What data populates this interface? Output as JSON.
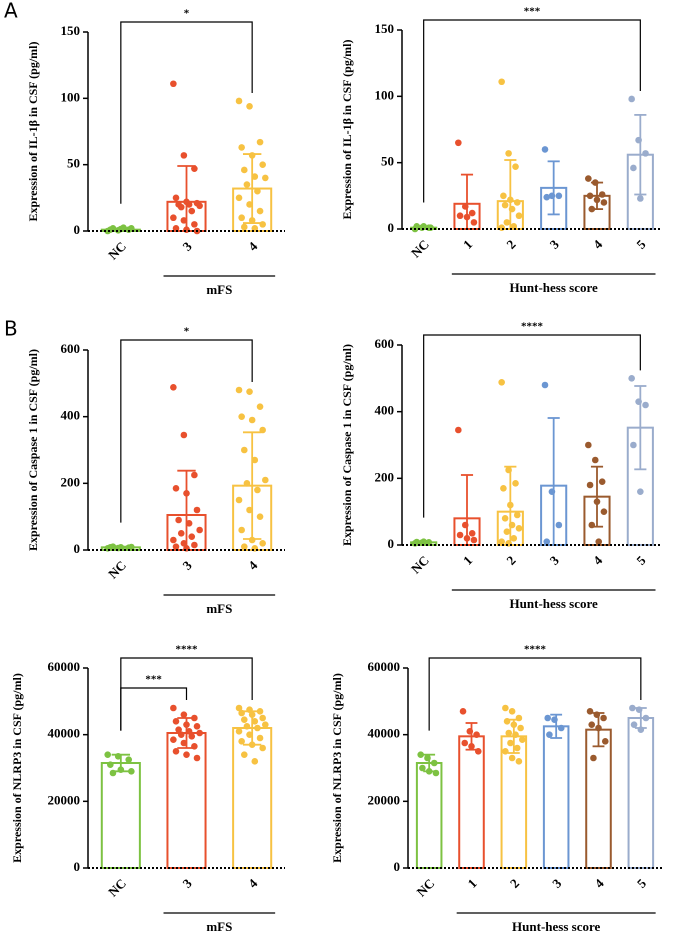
{
  "chart_data": [
    {
      "type": "bar",
      "panel_label": "A",
      "ylabel": "Expression of IL-1β in CSF (pg/ml)",
      "categories": [
        "NC",
        "3",
        "4"
      ],
      "colors": [
        "#7dc242",
        "#e8502d",
        "#f7c242"
      ],
      "values": [
        1,
        22,
        32
      ],
      "errors": [
        0.8,
        27,
        26
      ],
      "points": [
        [
          0,
          0.5,
          1,
          1,
          1.5,
          2,
          2,
          2.5
        ],
        [
          111,
          57,
          47,
          25,
          22,
          21,
          20,
          20,
          19,
          18,
          15,
          10,
          8,
          5,
          2,
          1,
          0
        ],
        [
          98,
          94,
          67,
          63,
          57,
          50,
          46,
          41,
          40,
          35,
          30,
          25,
          20,
          15,
          10,
          8,
          5,
          3,
          2
        ]
      ],
      "ylim": [
        0,
        150
      ],
      "yticks": [
        0,
        50,
        100,
        150
      ],
      "group_label": "mFS",
      "brackets": [
        {
          "from": "NC",
          "to": "4",
          "label": "*"
        }
      ]
    },
    {
      "type": "bar",
      "ylabel": "Expression of IL-1β in CSF (pg/ml)",
      "categories": [
        "NC",
        "1",
        "2",
        "3",
        "4",
        "5"
      ],
      "colors": [
        "#7dc242",
        "#e8502d",
        "#f7c242",
        "#6b96d2",
        "#9a5a2e",
        "#9aaccc"
      ],
      "values": [
        1,
        19,
        21,
        31,
        25,
        56
      ],
      "errors": [
        0.8,
        22,
        31,
        20,
        10,
        30
      ],
      "points": [
        [
          0,
          1,
          1,
          2,
          2,
          1
        ],
        [
          65,
          17,
          12,
          10,
          9,
          5
        ],
        [
          111,
          57,
          47,
          25,
          22,
          20,
          18,
          15,
          10,
          5,
          2,
          1
        ],
        [
          60,
          25,
          25,
          24
        ],
        [
          38,
          35,
          26,
          25,
          22,
          20,
          15
        ],
        [
          98,
          67,
          57,
          46,
          23
        ]
      ],
      "ylim": [
        0,
        150
      ],
      "yticks": [
        0,
        50,
        100,
        150
      ],
      "group_label": "Hunt-hess score",
      "brackets": [
        {
          "from": "NC",
          "to": "5",
          "label": "***"
        }
      ]
    },
    {
      "type": "bar",
      "panel_label": "B",
      "ylabel": "Expression of Caspase 1 in CSF (pg/ml)",
      "categories": [
        "NC",
        "3",
        "4"
      ],
      "colors": [
        "#7dc242",
        "#e8502d",
        "#f7c242"
      ],
      "values": [
        8,
        105,
        193
      ],
      "errors": [
        2,
        133,
        160
      ],
      "points": [
        [
          5,
          6,
          7,
          8,
          8,
          9,
          10
        ],
        [
          488,
          345,
          225,
          185,
          170,
          120,
          90,
          80,
          60,
          50,
          40,
          30,
          20,
          15,
          10,
          5
        ],
        [
          480,
          475,
          430,
          400,
          390,
          360,
          300,
          270,
          210,
          200,
          180,
          150,
          120,
          100,
          60,
          30,
          20,
          10,
          5
        ]
      ],
      "ylim": [
        0,
        600
      ],
      "yticks": [
        0,
        200,
        400,
        600
      ],
      "group_label": "mFS",
      "brackets": [
        {
          "from": "NC",
          "to": "4",
          "label": "*"
        }
      ]
    },
    {
      "type": "bar",
      "ylabel": "Expression of Caspase 1 in CSF (pg/ml)",
      "categories": [
        "NC",
        "1",
        "2",
        "3",
        "4",
        "5"
      ],
      "colors": [
        "#7dc242",
        "#e8502d",
        "#f7c242",
        "#6b96d2",
        "#9a5a2e",
        "#9aaccc"
      ],
      "values": [
        8,
        80,
        100,
        178,
        145,
        352
      ],
      "errors": [
        2,
        130,
        135,
        203,
        90,
        125
      ],
      "points": [
        [
          5,
          7,
          8,
          9,
          10
        ],
        [
          345,
          60,
          35,
          30,
          20,
          15
        ],
        [
          488,
          225,
          185,
          170,
          120,
          90,
          80,
          60,
          50,
          40,
          20,
          10,
          5
        ],
        [
          480,
          160,
          60,
          10
        ],
        [
          300,
          255,
          190,
          180,
          130,
          100,
          60,
          10
        ],
        [
          500,
          430,
          420,
          300,
          160
        ]
      ],
      "ylim": [
        0,
        600
      ],
      "yticks": [
        0,
        200,
        400,
        600
      ],
      "group_label": "Hunt-hess score",
      "brackets": [
        {
          "from": "NC",
          "to": "5",
          "label": "****"
        }
      ]
    },
    {
      "type": "bar",
      "ylabel": "Expression of NLRP3 in CSF (pg/ml)",
      "categories": [
        "NC",
        "3",
        "4"
      ],
      "colors": [
        "#7dc242",
        "#e8502d",
        "#f7c242"
      ],
      "values": [
        31500,
        40500,
        42000
      ],
      "errors": [
        2500,
        4500,
        5000
      ],
      "points": [
        [
          34000,
          33500,
          32500,
          31000,
          29500,
          29000,
          28500
        ],
        [
          48000,
          46000,
          45000,
          44000,
          43000,
          42500,
          41500,
          41000,
          40500,
          40000,
          39500,
          38500,
          37500,
          36500,
          35000,
          34000,
          33000
        ],
        [
          48000,
          47500,
          47000,
          46500,
          46000,
          45000,
          44500,
          44000,
          43000,
          42500,
          42000,
          41000,
          40000,
          39000,
          38000,
          37000,
          36000,
          34000,
          32000
        ]
      ],
      "ylim": [
        0,
        60000
      ],
      "yticks": [
        0,
        20000,
        40000,
        60000
      ],
      "group_label": "mFS",
      "brackets": [
        {
          "from": "NC",
          "to": "3",
          "label": "***"
        },
        {
          "from": "NC",
          "to": "4",
          "label": "****"
        }
      ]
    },
    {
      "type": "bar",
      "ylabel": "Expression of NLRP3 in CSF (pg/ml)",
      "categories": [
        "NC",
        "1",
        "2",
        "3",
        "4",
        "5"
      ],
      "colors": [
        "#7dc242",
        "#e8502d",
        "#f7c242",
        "#6b96d2",
        "#9a5a2e",
        "#9aaccc"
      ],
      "values": [
        31500,
        39500,
        39500,
        42500,
        41500,
        45000
      ],
      "errors": [
        2500,
        4000,
        5000,
        3500,
        5000,
        3000
      ],
      "points": [
        [
          34000,
          33000,
          31500,
          30000,
          29000,
          28500
        ],
        [
          47000,
          41000,
          40000,
          37500,
          36500,
          35000
        ],
        [
          48000,
          47000,
          45000,
          44000,
          43000,
          42000,
          40500,
          40000,
          38500,
          37500,
          36000,
          35000,
          33000,
          32000
        ],
        [
          45000,
          44500,
          42000,
          40000
        ],
        [
          47000,
          46000,
          45000,
          43000,
          42000,
          38000,
          33000
        ],
        [
          48000,
          47500,
          45000,
          43000,
          41500
        ]
      ],
      "ylim": [
        0,
        60000
      ],
      "yticks": [
        0,
        20000,
        40000,
        60000
      ],
      "group_label": "Hunt-hess score",
      "brackets": [
        {
          "from": "NC",
          "to": "5",
          "label": "****"
        }
      ]
    }
  ]
}
